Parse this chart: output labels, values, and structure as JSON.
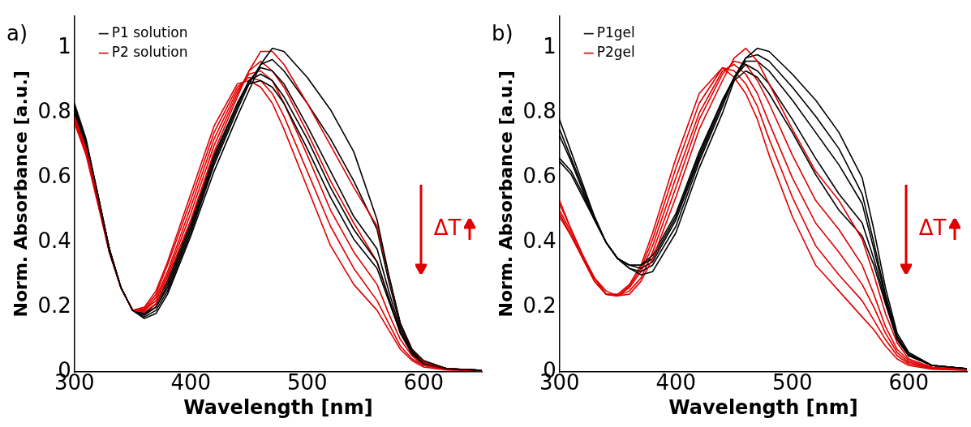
{
  "chart_data": [
    {
      "type": "line",
      "title": "a)",
      "xlabel": "Wavelength [nm]",
      "ylabel": "Norm. Absorbance [a.u.]",
      "legend": "top left",
      "marker": "none",
      "line_style": "solid",
      "grid": false,
      "xlim": [
        300,
        650
      ],
      "xticks": [
        300,
        400,
        500,
        600
      ],
      "ylim": [
        0,
        1.1
      ],
      "yticks": [
        0,
        0.2,
        0.4,
        0.6,
        0.8,
        1
      ],
      "annotations": [
        "ΔT"
      ],
      "x": [
        300,
        310,
        320,
        330,
        340,
        350,
        360,
        370,
        380,
        400,
        420,
        440,
        450,
        460,
        470,
        480,
        500,
        520,
        540,
        560,
        570,
        580,
        590,
        600,
        620,
        650
      ],
      "series": [
        {
          "name": "P1 solution",
          "color": "#000000",
          "values": [
            0.83,
            0.72,
            0.55,
            0.38,
            0.26,
            0.19,
            0.165,
            0.18,
            0.24,
            0.42,
            0.62,
            0.79,
            0.87,
            0.95,
            1.0,
            0.99,
            0.91,
            0.81,
            0.68,
            0.47,
            0.3,
            0.15,
            0.07,
            0.035,
            0.01,
            0.005
          ]
        },
        {
          "name": "P2 solution",
          "color": "#e00000",
          "values": [
            0.79,
            0.69,
            0.54,
            0.38,
            0.26,
            0.19,
            0.185,
            0.21,
            0.29,
            0.47,
            0.68,
            0.85,
            0.93,
            0.99,
            0.99,
            0.95,
            0.83,
            0.7,
            0.57,
            0.45,
            0.3,
            0.15,
            0.07,
            0.03,
            0.01,
            0.005
          ]
        },
        {
          "color": "#000000",
          "values": [
            0.82,
            0.71,
            0.55,
            0.38,
            0.26,
            0.19,
            0.17,
            0.19,
            0.25,
            0.43,
            0.64,
            0.81,
            0.89,
            0.95,
            0.965,
            0.93,
            0.83,
            0.72,
            0.59,
            0.44,
            0.28,
            0.14,
            0.065,
            0.03,
            0.01,
            0.005
          ]
        },
        {
          "color": "#000000",
          "values": [
            0.81,
            0.71,
            0.55,
            0.38,
            0.26,
            0.19,
            0.175,
            0.2,
            0.26,
            0.44,
            0.65,
            0.82,
            0.9,
            0.94,
            0.93,
            0.89,
            0.76,
            0.62,
            0.48,
            0.38,
            0.25,
            0.13,
            0.06,
            0.03,
            0.01,
            0.005
          ]
        },
        {
          "color": "#000000",
          "values": [
            0.8,
            0.7,
            0.54,
            0.38,
            0.26,
            0.19,
            0.18,
            0.2,
            0.27,
            0.45,
            0.66,
            0.83,
            0.9,
            0.92,
            0.9,
            0.85,
            0.72,
            0.57,
            0.44,
            0.34,
            0.23,
            0.12,
            0.06,
            0.03,
            0.01,
            0.005
          ]
        },
        {
          "color": "#000000",
          "values": [
            0.8,
            0.7,
            0.54,
            0.37,
            0.26,
            0.19,
            0.18,
            0.21,
            0.28,
            0.46,
            0.67,
            0.83,
            0.89,
            0.9,
            0.88,
            0.83,
            0.69,
            0.54,
            0.41,
            0.32,
            0.22,
            0.12,
            0.055,
            0.025,
            0.01,
            0.005
          ]
        },
        {
          "color": "#e00000",
          "values": [
            0.78,
            0.69,
            0.54,
            0.38,
            0.26,
            0.19,
            0.19,
            0.22,
            0.3,
            0.49,
            0.7,
            0.86,
            0.93,
            0.96,
            0.93,
            0.88,
            0.74,
            0.59,
            0.46,
            0.34,
            0.23,
            0.12,
            0.06,
            0.025,
            0.01,
            0.005
          ]
        },
        {
          "color": "#e00000",
          "values": [
            0.78,
            0.68,
            0.53,
            0.37,
            0.26,
            0.19,
            0.19,
            0.23,
            0.31,
            0.51,
            0.72,
            0.87,
            0.92,
            0.93,
            0.9,
            0.83,
            0.67,
            0.5,
            0.37,
            0.27,
            0.18,
            0.1,
            0.05,
            0.02,
            0.008,
            0.004
          ]
        },
        {
          "color": "#e00000",
          "values": [
            0.77,
            0.68,
            0.53,
            0.37,
            0.26,
            0.19,
            0.195,
            0.24,
            0.33,
            0.53,
            0.74,
            0.88,
            0.91,
            0.9,
            0.86,
            0.79,
            0.62,
            0.45,
            0.32,
            0.22,
            0.15,
            0.08,
            0.04,
            0.02,
            0.007,
            0.004
          ]
        },
        {
          "color": "#e00000",
          "values": [
            0.77,
            0.67,
            0.52,
            0.37,
            0.26,
            0.19,
            0.2,
            0.25,
            0.34,
            0.55,
            0.76,
            0.89,
            0.9,
            0.88,
            0.83,
            0.75,
            0.57,
            0.39,
            0.27,
            0.19,
            0.13,
            0.07,
            0.035,
            0.015,
            0.006,
            0.003
          ]
        }
      ]
    },
    {
      "type": "line",
      "title": "b)",
      "xlabel": "Wavelength [nm]",
      "ylabel": "Norm. Absorbance [a.u.]",
      "legend": "top left",
      "marker": "none",
      "line_style": "solid",
      "grid": false,
      "xlim": [
        300,
        650
      ],
      "xticks": [
        300,
        400,
        500,
        600
      ],
      "ylim": [
        0,
        1.1
      ],
      "yticks": [
        0,
        0.2,
        0.4,
        0.6,
        0.8,
        1
      ],
      "annotations": [
        "ΔT"
      ],
      "x": [
        300,
        310,
        320,
        330,
        340,
        350,
        360,
        370,
        380,
        400,
        420,
        440,
        450,
        460,
        470,
        480,
        500,
        520,
        540,
        560,
        570,
        580,
        590,
        600,
        620,
        650
      ],
      "series": [
        {
          "name": "P1gel",
          "color": "#000000",
          "values": [
            0.78,
            0.68,
            0.58,
            0.48,
            0.4,
            0.35,
            0.32,
            0.3,
            0.31,
            0.43,
            0.63,
            0.8,
            0.9,
            0.97,
            1.0,
            0.99,
            0.92,
            0.84,
            0.74,
            0.6,
            0.44,
            0.26,
            0.12,
            0.06,
            0.02,
            0.01
          ]
        },
        {
          "name": "P2gel",
          "color": "#e00000",
          "values": [
            0.53,
            0.44,
            0.36,
            0.29,
            0.25,
            0.235,
            0.24,
            0.28,
            0.35,
            0.54,
            0.75,
            0.9,
            0.97,
            1.0,
            0.96,
            0.89,
            0.75,
            0.62,
            0.53,
            0.41,
            0.3,
            0.18,
            0.09,
            0.04,
            0.015,
            0.008
          ]
        },
        {
          "color": "#000000",
          "values": [
            0.75,
            0.66,
            0.57,
            0.48,
            0.4,
            0.35,
            0.32,
            0.31,
            0.33,
            0.45,
            0.65,
            0.82,
            0.91,
            0.97,
            0.98,
            0.96,
            0.88,
            0.79,
            0.69,
            0.55,
            0.4,
            0.24,
            0.11,
            0.055,
            0.02,
            0.01
          ]
        },
        {
          "color": "#000000",
          "values": [
            0.73,
            0.65,
            0.56,
            0.47,
            0.4,
            0.35,
            0.33,
            0.32,
            0.34,
            0.47,
            0.66,
            0.83,
            0.91,
            0.96,
            0.96,
            0.93,
            0.84,
            0.74,
            0.64,
            0.52,
            0.38,
            0.23,
            0.11,
            0.05,
            0.02,
            0.01
          ]
        },
        {
          "color": "#000000",
          "values": [
            0.66,
            0.62,
            0.55,
            0.47,
            0.4,
            0.35,
            0.33,
            0.33,
            0.35,
            0.48,
            0.67,
            0.84,
            0.91,
            0.95,
            0.93,
            0.89,
            0.78,
            0.66,
            0.55,
            0.46,
            0.35,
            0.22,
            0.1,
            0.05,
            0.02,
            0.01
          ]
        },
        {
          "color": "#000000",
          "values": [
            0.65,
            0.61,
            0.54,
            0.47,
            0.4,
            0.35,
            0.33,
            0.33,
            0.36,
            0.49,
            0.68,
            0.84,
            0.9,
            0.93,
            0.91,
            0.86,
            0.74,
            0.61,
            0.5,
            0.42,
            0.33,
            0.21,
            0.1,
            0.05,
            0.02,
            0.01
          ]
        },
        {
          "color": "#e00000",
          "values": [
            0.52,
            0.44,
            0.36,
            0.29,
            0.24,
            0.235,
            0.25,
            0.29,
            0.37,
            0.57,
            0.78,
            0.92,
            0.96,
            0.95,
            0.9,
            0.83,
            0.67,
            0.53,
            0.44,
            0.33,
            0.24,
            0.14,
            0.07,
            0.035,
            0.012,
            0.007
          ]
        },
        {
          "color": "#e00000",
          "values": [
            0.5,
            0.43,
            0.35,
            0.29,
            0.24,
            0.235,
            0.26,
            0.31,
            0.39,
            0.6,
            0.8,
            0.93,
            0.95,
            0.92,
            0.86,
            0.77,
            0.6,
            0.46,
            0.37,
            0.27,
            0.2,
            0.12,
            0.06,
            0.03,
            0.01,
            0.006
          ]
        },
        {
          "color": "#e00000",
          "values": [
            0.49,
            0.42,
            0.35,
            0.28,
            0.24,
            0.235,
            0.265,
            0.32,
            0.41,
            0.63,
            0.83,
            0.94,
            0.93,
            0.89,
            0.82,
            0.72,
            0.54,
            0.39,
            0.3,
            0.22,
            0.16,
            0.1,
            0.05,
            0.025,
            0.01,
            0.005
          ]
        },
        {
          "color": "#e00000",
          "values": [
            0.48,
            0.42,
            0.35,
            0.28,
            0.24,
            0.24,
            0.27,
            0.33,
            0.43,
            0.66,
            0.86,
            0.94,
            0.91,
            0.86,
            0.78,
            0.67,
            0.48,
            0.33,
            0.25,
            0.17,
            0.13,
            0.08,
            0.04,
            0.02,
            0.008,
            0.005
          ]
        }
      ]
    }
  ]
}
